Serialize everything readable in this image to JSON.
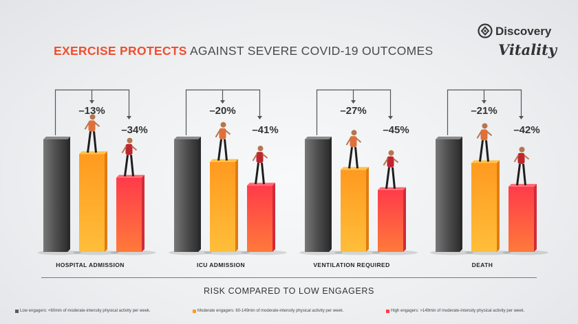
{
  "title": {
    "bold": "EXERCISE PROTECTS",
    "rest": "AGAINST SEVERE COVID-19 OUTCOMES"
  },
  "logo": {
    "brand": "Discovery",
    "sub": "Vitality"
  },
  "footer_title": "RISK COMPARED TO LOW ENGAGERS",
  "legend": [
    {
      "text": "Low engagers: <60min of moderate-intensity physical activity per week.",
      "color": "#5a5a5a"
    },
    {
      "text": "Moderate engagers: 60-149min of moderate-intensity physical activity per week.",
      "color": "#ff9a1f"
    },
    {
      "text": "High engagers: >149min of moderate-intensity physical activity per week.",
      "color": "#ff3b4a"
    }
  ],
  "colors": {
    "accent": "#ef4f2f",
    "low": "#5a5a5a",
    "moderate": "#ff9a1f",
    "high": "#ff3b4a"
  },
  "chart_data": {
    "type": "bar",
    "title": "EXERCISE PROTECTS AGAINST SEVERE COVID-19 OUTCOMES",
    "xlabel": "RISK COMPARED TO LOW ENGAGERS",
    "ylabel": "",
    "categories": [
      "HOSPITAL ADMISSION",
      "ICU ADMISSION",
      "VENTILATION REQUIRED",
      "DEATH"
    ],
    "series": [
      {
        "name": "Low engagers",
        "values": [
          100,
          100,
          100,
          100
        ]
      },
      {
        "name": "Moderate engagers",
        "values": [
          87,
          80,
          73,
          79
        ]
      },
      {
        "name": "High engagers",
        "values": [
          66,
          59,
          55,
          58
        ]
      }
    ],
    "labels": [
      [
        "",
        "–13%",
        "–34%"
      ],
      [
        "",
        "–20%",
        "–41%"
      ],
      [
        "",
        "–27%",
        "–45%"
      ],
      [
        "",
        "–21%",
        "–42%"
      ]
    ],
    "ylim": [
      0,
      100
    ],
    "grid": false,
    "legend_position": "bottom"
  }
}
